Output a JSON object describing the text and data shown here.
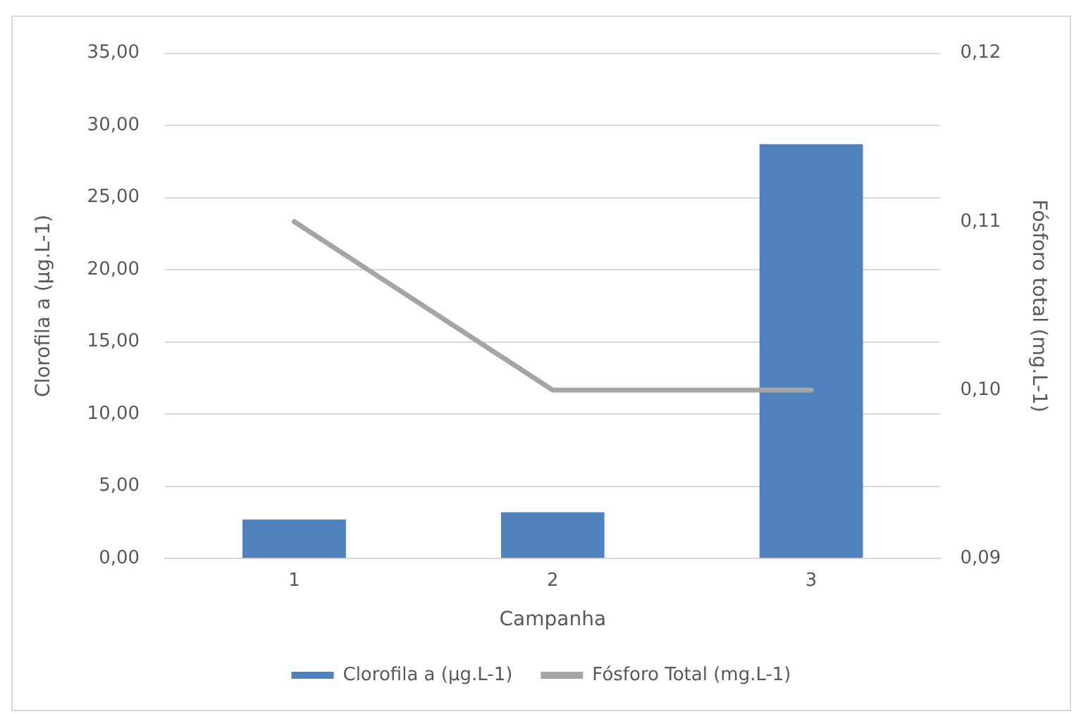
{
  "chart_data": {
    "type": "bar",
    "xlabel": "Campanha",
    "ylabel": "Clorofila a (µg.L-1)",
    "y2label": "Fósforo total (mg.L-1)",
    "categories": [
      "1",
      "2",
      "3"
    ],
    "series": [
      {
        "name": "Clorofila a (µg.L-1)",
        "color": "#4f81bd",
        "values": [
          2.7,
          3.2,
          28.7
        ]
      },
      {
        "name": "Fósforo Total (mg.L-1)",
        "type": "line",
        "axis": "y2",
        "color": "#a5a5a5",
        "values": [
          0.11,
          0.1,
          0.1
        ]
      }
    ],
    "ylim": [
      0,
      35
    ],
    "yticks": [
      {
        "value": 0,
        "label": "0,00"
      },
      {
        "value": 5,
        "label": "5,00"
      },
      {
        "value": 10,
        "label": "10,00"
      },
      {
        "value": 15,
        "label": "15,00"
      },
      {
        "value": 20,
        "label": "20,00"
      },
      {
        "value": 25,
        "label": "25,00"
      },
      {
        "value": 30,
        "label": "30,00"
      },
      {
        "value": 35,
        "label": "35,00"
      }
    ],
    "y2lim": [
      0.09,
      0.12
    ],
    "y2ticks": [
      {
        "value": 0.09,
        "label": "0,09"
      },
      {
        "value": 0.1,
        "label": "0,10"
      },
      {
        "value": 0.11,
        "label": "0,11"
      },
      {
        "value": 0.12,
        "label": "0,12"
      }
    ],
    "grid": "y",
    "legend": "bottom",
    "marker": "none"
  }
}
